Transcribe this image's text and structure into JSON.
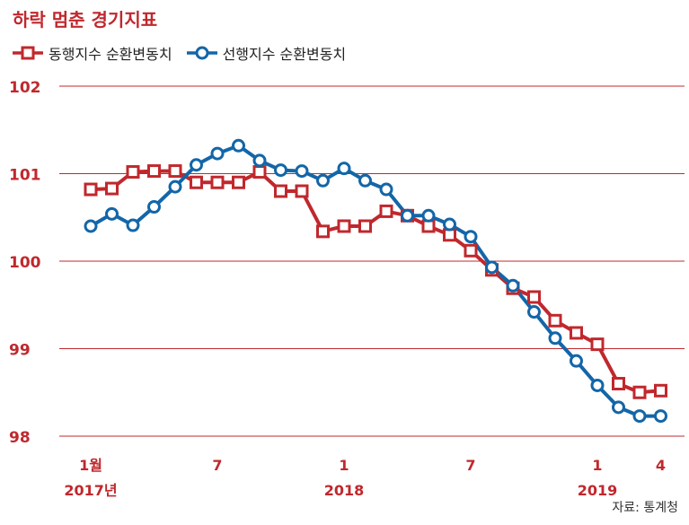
{
  "chart_data": {
    "type": "line",
    "title": "하락 멈춘 경기지표",
    "ylim": [
      98,
      102
    ],
    "y_ticks": [
      "102",
      "101",
      "100",
      "99",
      "98"
    ],
    "x_tick_labels": [
      {
        "index": 0,
        "top": "1월",
        "bottom": "2017년"
      },
      {
        "index": 6,
        "top": "7",
        "bottom": ""
      },
      {
        "index": 12,
        "top": "1",
        "bottom": "2018"
      },
      {
        "index": 18,
        "top": "7",
        "bottom": ""
      },
      {
        "index": 24,
        "top": "1",
        "bottom": "2019"
      },
      {
        "index": 27,
        "top": "4",
        "bottom": ""
      }
    ],
    "series": [
      {
        "name": "동행지수 순환변동치",
        "color": "#c0282d",
        "marker": "square",
        "values": [
          100.82,
          100.83,
          101.02,
          101.03,
          101.03,
          100.9,
          100.9,
          100.9,
          101.02,
          100.8,
          100.8,
          100.34,
          100.4,
          100.4,
          100.57,
          100.52,
          100.4,
          100.3,
          100.12,
          99.9,
          99.69,
          99.59,
          99.32,
          99.18,
          99.05,
          98.6,
          98.5,
          98.52
        ]
      },
      {
        "name": "선행지수 순환변동치",
        "color": "#1366a8",
        "marker": "circle",
        "values": [
          100.4,
          100.54,
          100.41,
          100.62,
          100.85,
          101.1,
          101.23,
          101.32,
          101.15,
          101.04,
          101.03,
          100.92,
          101.06,
          100.92,
          100.82,
          100.52,
          100.52,
          100.42,
          100.28,
          99.93,
          99.72,
          99.42,
          99.12,
          98.86,
          98.58,
          98.33,
          98.23,
          98.23
        ]
      }
    ],
    "source": "자료: 통계청",
    "grid": true
  },
  "colors": {
    "title": "#c0282d",
    "axis_labels": "#c0282d",
    "grid": "#c0282d"
  }
}
